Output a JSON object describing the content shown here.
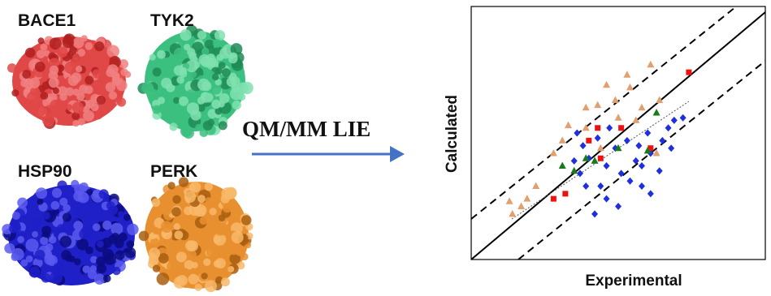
{
  "proteins": [
    "BACE1",
    "TYK2",
    "HSP90",
    "PERK"
  ],
  "method": "QM/MM LIE",
  "chart_data": {
    "type": "scatter",
    "xlabel": "Experimental",
    "ylabel": "Calculated",
    "xlim": [
      0,
      10
    ],
    "ylim": [
      0,
      10
    ],
    "series": [
      {
        "name": "HSP90",
        "color": "#1f2fe0",
        "marker": "diamond",
        "x": [
          3.6,
          3.8,
          4.0,
          4.3,
          4.6,
          4.9,
          5.1,
          5.3,
          5.6,
          5.8,
          6.1,
          6.4,
          6.7,
          6.9,
          7.2,
          3.9,
          4.2,
          4.6,
          5.0,
          5.4,
          5.7,
          6.1,
          6.5,
          3.5,
          4.4,
          6.0,
          6.8,
          4.7,
          3.7,
          5.8
        ],
        "y": [
          5.0,
          4.5,
          4.0,
          4.8,
          3.7,
          4.4,
          3.4,
          4.7,
          3.9,
          2.9,
          4.2,
          3.5,
          5.2,
          5.5,
          5.6,
          2.9,
          1.8,
          2.4,
          2.1,
          3.1,
          4.5,
          2.6,
          4.7,
          3.9,
          2.9,
          5.0,
          4.4,
          5.2,
          3.4,
          3.7
        ]
      },
      {
        "name": "PERK",
        "color": "#e0a070",
        "marker": "triangle",
        "x": [
          6.1,
          5.3,
          4.6,
          4.3,
          3.9,
          4.9,
          5.4,
          5.8,
          5.0,
          3.3,
          3.1,
          2.8,
          2.2,
          1.9,
          1.7,
          1.4,
          1.3,
          3.9,
          4.4,
          6.4,
          5.6,
          6.3
        ],
        "y": [
          7.7,
          7.3,
          6.9,
          6.1,
          6.0,
          6.3,
          6.8,
          6.0,
          5.6,
          5.3,
          4.7,
          4.2,
          2.9,
          2.4,
          2.1,
          1.8,
          2.3,
          5.2,
          4.4,
          6.3,
          5.5,
          4.2
        ]
      },
      {
        "name": "BACE1",
        "color": "#ee1111",
        "marker": "square",
        "x": [
          7.4,
          4.3,
          5.1,
          4.0,
          3.2,
          2.8,
          6.1,
          4.4
        ],
        "y": [
          7.4,
          5.2,
          5.2,
          4.7,
          2.6,
          2.4,
          4.4,
          4.0
        ]
      },
      {
        "name": "TYK2",
        "color": "#1a7a1a",
        "marker": "triangle",
        "x": [
          6.3,
          3.1,
          3.5,
          3.9,
          5.0,
          6.0,
          4.2
        ],
        "y": [
          5.8,
          3.7,
          3.5,
          4.0,
          4.4,
          4.3,
          3.9
        ]
      }
    ]
  }
}
